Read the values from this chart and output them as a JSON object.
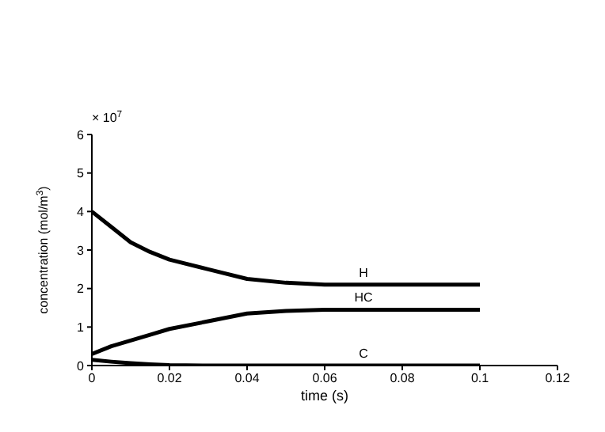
{
  "chart_data": {
    "type": "line",
    "xlabel": "time (s)",
    "ylabel": "concentration (mol/m$^{3}$)",
    "annotations": [
      "× 10$^{7}$"
    ],
    "x": [
      0,
      0.005,
      0.01,
      0.015,
      0.02,
      0.03,
      0.04,
      0.05,
      0.06,
      0.07,
      0.08,
      0.09,
      0.1
    ],
    "series": [
      {
        "name": "H",
        "color": "#000000",
        "values": [
          4,
          3.6,
          3.2,
          2.95,
          2.75,
          2.5,
          2.25,
          2.15,
          2.1,
          2.1,
          2.1,
          2.1,
          2.1
        ]
      },
      {
        "name": "HC",
        "color": "#000000",
        "values": [
          0.3,
          0.5,
          0.65,
          0.8,
          0.95,
          1.15,
          1.35,
          1.42,
          1.45,
          1.45,
          1.45,
          1.45,
          1.45
        ]
      },
      {
        "name": "C",
        "color": "#000000",
        "values": [
          0.15,
          0.1,
          0.06,
          0.03,
          0.01,
          0,
          0,
          0,
          0,
          0,
          0,
          0,
          0
        ]
      }
    ],
    "xlim": [
      0,
      0.12
    ],
    "xticks": [
      0,
      0.02,
      0.04,
      0.06,
      0.08,
      0.1,
      0.12
    ],
    "ylim": [
      0,
      6
    ],
    "yticks": [
      0,
      1,
      2,
      3,
      4,
      5,
      6
    ],
    "grid": false,
    "legend": false,
    "marker": "none",
    "line_style": "solid"
  }
}
